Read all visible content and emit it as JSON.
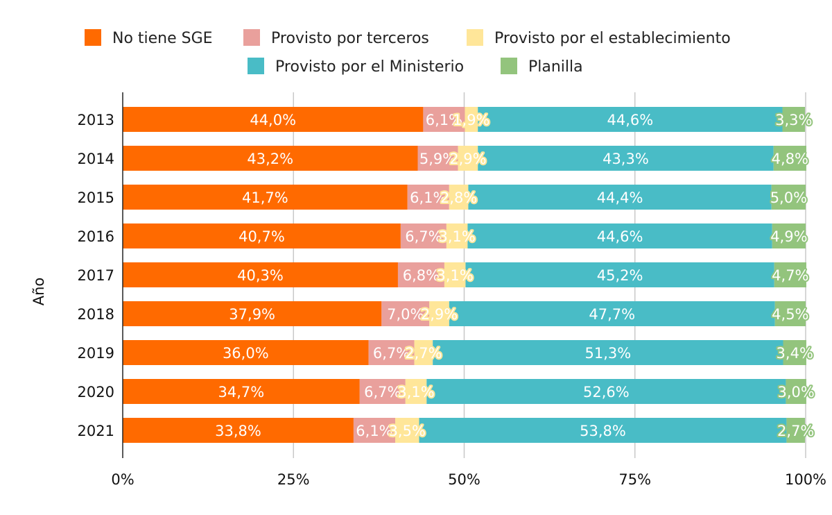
{
  "chart_data": {
    "type": "bar",
    "orientation": "horizontal",
    "stacked": "percent",
    "ylabel": "Año",
    "xlabel": "",
    "xlim": [
      0,
      100
    ],
    "xticks": [
      "0%",
      "25%",
      "50%",
      "75%",
      "100%"
    ],
    "grid": "vertical",
    "legend_position": "top",
    "categories": [
      "2013",
      "2014",
      "2015",
      "2016",
      "2017",
      "2018",
      "2019",
      "2020",
      "2021"
    ],
    "series": [
      {
        "name": "No tiene SGE",
        "color": "#FF6A00",
        "values": [
          44.0,
          43.2,
          41.7,
          40.7,
          40.3,
          37.9,
          36.0,
          34.7,
          33.8
        ]
      },
      {
        "name": "Provisto por terceros",
        "color": "#E9A09C",
        "values": [
          6.1,
          5.9,
          6.1,
          6.7,
          6.8,
          7.0,
          6.7,
          6.7,
          6.1
        ]
      },
      {
        "name": "Provisto por el establecimiento",
        "color": "#FFE699",
        "values": [
          1.9,
          2.9,
          2.8,
          3.1,
          3.1,
          2.9,
          2.7,
          3.1,
          3.5
        ]
      },
      {
        "name": "Provisto por el Ministerio",
        "color": "#49BCC6",
        "values": [
          44.6,
          43.3,
          44.4,
          44.6,
          45.2,
          47.7,
          51.3,
          52.6,
          53.8
        ]
      },
      {
        "name": "Planilla",
        "color": "#93C47D",
        "values": [
          3.3,
          4.8,
          5.0,
          4.9,
          4.7,
          4.5,
          3.4,
          3.0,
          2.7
        ]
      }
    ]
  }
}
